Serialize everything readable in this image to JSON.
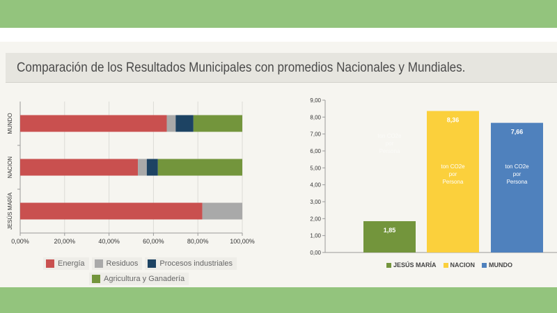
{
  "title": "Comparación de los Resultados Municipales con promedios Nacionales y Mundiales.",
  "chart_data": [
    {
      "type": "bar",
      "orientation": "horizontal",
      "stacked": true,
      "categories": [
        "MUNDO",
        "NACION",
        "JESÚS MARÍA"
      ],
      "series": [
        {
          "name": "Energía",
          "color": "#c9504f",
          "values": [
            66,
            53,
            82
          ]
        },
        {
          "name": "Residuos",
          "color": "#a9a9a9",
          "values": [
            4,
            4,
            18
          ]
        },
        {
          "name": "Procesos industriales",
          "color": "#1d4363",
          "values": [
            8,
            5,
            0
          ]
        },
        {
          "name": "Agricultura y Ganadería",
          "color": "#73953c",
          "values": [
            22,
            38,
            0
          ]
        }
      ],
      "xlim": [
        0,
        100
      ],
      "xticks": [
        "0,00%",
        "20,00%",
        "40,00%",
        "60,00%",
        "80,00%",
        "100,00%"
      ],
      "grid": true,
      "legend": "bottom"
    },
    {
      "type": "bar",
      "categories": [
        "JESÚS MARÍA",
        "NACION",
        "MUNDO"
      ],
      "values": [
        1.85,
        8.36,
        7.66
      ],
      "value_labels": [
        "1,85",
        "8,36",
        "7,66"
      ],
      "bar_labels": [
        "ton CO2e por Persona",
        "ton CO2e por Persona",
        "ton CO2e por Persona"
      ],
      "colors": [
        "#73953c",
        "#fbd03c",
        "#4f81bd"
      ],
      "ylim": [
        0,
        9
      ],
      "yticks": [
        "0,00",
        "1,00",
        "2,00",
        "3,00",
        "4,00",
        "5,00",
        "6,00",
        "7,00",
        "8,00",
        "9,00"
      ],
      "grid": false,
      "legend": "bottom"
    }
  ]
}
